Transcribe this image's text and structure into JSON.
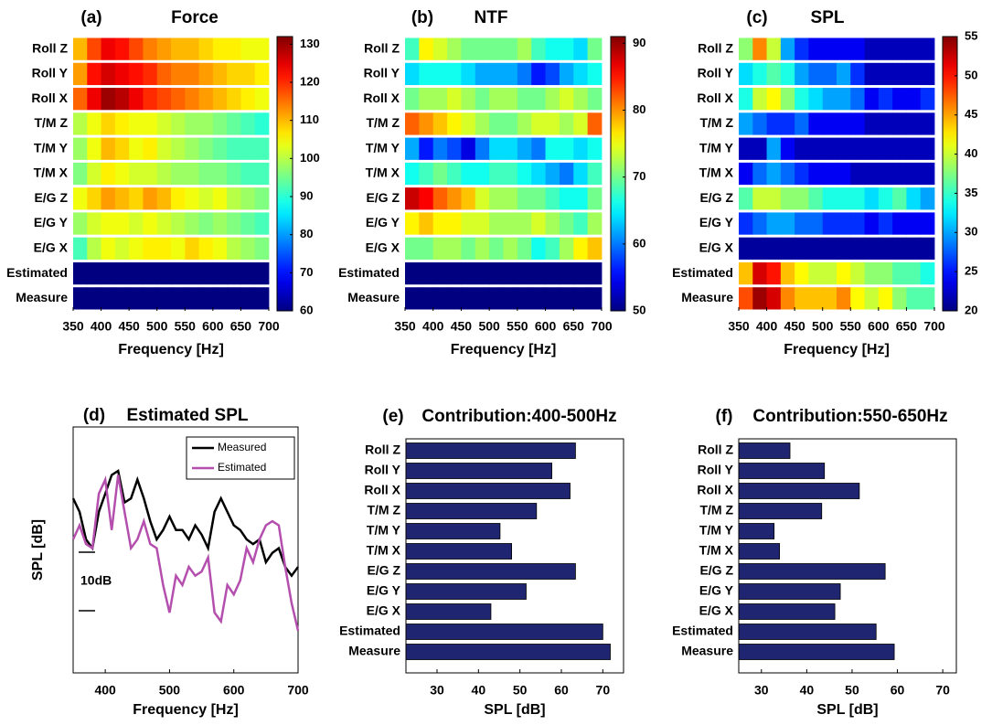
{
  "chart_data": [
    {
      "type": "heatmap",
      "panel": "(a)",
      "title": "Force",
      "rows": [
        "Roll Z",
        "Roll Y",
        "Roll X",
        "T/M Z",
        "T/M Y",
        "T/M X",
        "E/G Z",
        "E/G Y",
        "E/G X",
        "Estimated",
        "Measure"
      ],
      "x_bins": [
        350,
        375,
        400,
        425,
        450,
        475,
        500,
        525,
        550,
        575,
        600,
        625,
        650,
        675,
        700
      ],
      "values": [
        [
          110,
          118,
          124,
          122,
          118,
          114,
          112,
          110,
          110,
          108,
          106,
          106,
          104,
          104
        ],
        [
          112,
          122,
          126,
          124,
          122,
          120,
          116,
          114,
          114,
          112,
          110,
          108,
          108,
          106
        ],
        [
          116,
          124,
          130,
          128,
          124,
          120,
          118,
          116,
          114,
          112,
          110,
          108,
          106,
          104
        ],
        [
          100,
          104,
          108,
          106,
          104,
          104,
          102,
          100,
          98,
          98,
          96,
          94,
          92,
          90
        ],
        [
          98,
          104,
          110,
          108,
          104,
          106,
          102,
          100,
          98,
          96,
          94,
          92,
          92,
          92
        ],
        [
          96,
          102,
          106,
          104,
          102,
          102,
          100,
          98,
          98,
          96,
          96,
          94,
          92,
          92
        ],
        [
          104,
          108,
          112,
          110,
          108,
          112,
          110,
          106,
          104,
          102,
          104,
          100,
          98,
          96
        ],
        [
          98,
          102,
          104,
          104,
          102,
          104,
          102,
          100,
          98,
          96,
          98,
          96,
          94,
          92
        ],
        [
          92,
          100,
          104,
          102,
          104,
          106,
          106,
          104,
          108,
          106,
          104,
          100,
          98,
          96
        ],
        [
          60,
          60,
          60,
          60,
          60,
          60,
          60,
          60,
          60,
          60,
          60,
          60,
          60,
          60
        ],
        [
          60,
          60,
          60,
          60,
          60,
          60,
          60,
          60,
          60,
          60,
          60,
          60,
          60,
          60
        ]
      ],
      "clim": [
        60,
        132
      ],
      "cticks": [
        60,
        70,
        80,
        90,
        100,
        110,
        120,
        130
      ],
      "colormap": "jet",
      "xlim": [
        350,
        700
      ],
      "xticks": [
        350,
        400,
        450,
        500,
        550,
        600,
        650,
        700
      ],
      "xlabel": "Frequency [Hz]"
    },
    {
      "type": "heatmap",
      "panel": "(b)",
      "title": "NTF",
      "rows": [
        "Roll Z",
        "Roll Y",
        "Roll X",
        "T/M Z",
        "T/M Y",
        "T/M X",
        "E/G Z",
        "E/G Y",
        "E/G X",
        "Estimated",
        "Measure"
      ],
      "x_bins": [
        350,
        375,
        400,
        425,
        450,
        475,
        500,
        525,
        550,
        575,
        600,
        625,
        650,
        675,
        700
      ],
      "values": [
        [
          68,
          76,
          74,
          72,
          70,
          70,
          70,
          70,
          72,
          68,
          66,
          66,
          64,
          70
        ],
        [
          64,
          66,
          66,
          66,
          64,
          62,
          62,
          62,
          60,
          56,
          58,
          62,
          64,
          66
        ],
        [
          70,
          72,
          72,
          74,
          72,
          70,
          72,
          72,
          70,
          70,
          72,
          74,
          72,
          70
        ],
        [
          82,
          80,
          78,
          76,
          74,
          72,
          70,
          70,
          72,
          74,
          74,
          72,
          74,
          82
        ],
        [
          62,
          56,
          60,
          58,
          54,
          60,
          64,
          64,
          62,
          60,
          66,
          66,
          64,
          66
        ],
        [
          66,
          68,
          70,
          68,
          66,
          66,
          68,
          68,
          66,
          64,
          62,
          60,
          64,
          68
        ],
        [
          88,
          86,
          82,
          80,
          78,
          74,
          72,
          72,
          70,
          70,
          68,
          66,
          66,
          70
        ],
        [
          76,
          78,
          76,
          76,
          74,
          74,
          72,
          72,
          72,
          74,
          72,
          70,
          68,
          72
        ],
        [
          70,
          70,
          72,
          72,
          70,
          72,
          70,
          72,
          70,
          66,
          68,
          72,
          76,
          78
        ],
        [
          50,
          50,
          50,
          50,
          50,
          50,
          50,
          50,
          50,
          50,
          50,
          50,
          50,
          50
        ],
        [
          50,
          50,
          50,
          50,
          50,
          50,
          50,
          50,
          50,
          50,
          50,
          50,
          50,
          50
        ]
      ],
      "clim": [
        50,
        91
      ],
      "cticks": [
        50,
        60,
        70,
        80,
        90
      ],
      "colormap": "jet",
      "xlim": [
        350,
        700
      ],
      "xticks": [
        350,
        400,
        450,
        500,
        550,
        600,
        650,
        700
      ],
      "xlabel": "Frequency [Hz]"
    },
    {
      "type": "heatmap",
      "panel": "(c)",
      "title": "SPL",
      "rows": [
        "Roll Z",
        "Roll Y",
        "Roll X",
        "T/M Z",
        "T/M Y",
        "T/M X",
        "E/G Z",
        "E/G Y",
        "E/G X",
        "Estimated",
        "Measure"
      ],
      "x_bins": [
        350,
        375,
        400,
        425,
        450,
        475,
        500,
        525,
        550,
        575,
        600,
        625,
        650,
        675,
        700
      ],
      "values": [
        [
          38,
          46,
          40,
          30,
          26,
          24,
          24,
          24,
          24,
          22,
          22,
          22,
          22,
          22
        ],
        [
          32,
          34,
          36,
          34,
          30,
          28,
          28,
          30,
          26,
          22,
          22,
          22,
          22,
          22
        ],
        [
          34,
          40,
          42,
          38,
          34,
          32,
          30,
          30,
          28,
          24,
          26,
          24,
          24,
          26
        ],
        [
          30,
          28,
          26,
          26,
          28,
          24,
          24,
          24,
          24,
          22,
          22,
          22,
          22,
          22
        ],
        [
          22,
          22,
          30,
          24,
          22,
          22,
          22,
          22,
          22,
          22,
          22,
          22,
          22,
          22
        ],
        [
          24,
          28,
          30,
          28,
          26,
          24,
          24,
          24,
          22,
          22,
          22,
          22,
          22,
          22
        ],
        [
          36,
          40,
          40,
          38,
          38,
          36,
          34,
          34,
          34,
          32,
          34,
          36,
          32,
          30
        ],
        [
          26,
          28,
          30,
          30,
          28,
          28,
          26,
          26,
          26,
          24,
          26,
          24,
          24,
          24
        ],
        [
          21,
          21,
          21,
          21,
          21,
          21,
          21,
          21,
          21,
          21,
          21,
          21,
          21,
          21
        ],
        [
          44,
          52,
          50,
          44,
          42,
          40,
          40,
          42,
          40,
          38,
          38,
          36,
          36,
          34
        ],
        [
          48,
          54,
          52,
          46,
          44,
          44,
          44,
          46,
          42,
          40,
          42,
          38,
          36,
          36
        ]
      ],
      "clim": [
        20,
        55
      ],
      "cticks": [
        20,
        25,
        30,
        35,
        40,
        45,
        50,
        55
      ],
      "colormap": "jet",
      "xlim": [
        350,
        700
      ],
      "xticks": [
        350,
        400,
        450,
        500,
        550,
        600,
        650,
        700
      ],
      "xlabel": "Frequency [Hz]"
    },
    {
      "type": "line",
      "panel": "(d)",
      "title": "Estimated SPL",
      "x": [
        350,
        360,
        370,
        380,
        390,
        400,
        410,
        420,
        430,
        440,
        450,
        460,
        470,
        480,
        490,
        500,
        510,
        520,
        530,
        540,
        550,
        560,
        570,
        580,
        590,
        600,
        610,
        620,
        630,
        640,
        650,
        660,
        670,
        680,
        690,
        700
      ],
      "series": [
        {
          "name": "Measured",
          "color": "#000000",
          "values": [
            29.8,
            27.5,
            22.8,
            21.3,
            27.5,
            30.6,
            33.8,
            34.5,
            29.1,
            29.8,
            33,
            29.8,
            25.9,
            22.8,
            24.4,
            26.7,
            24.4,
            24.4,
            22.8,
            25.2,
            23.6,
            21.3,
            27.5,
            29.8,
            27.5,
            25.2,
            24.4,
            22.8,
            22,
            22.8,
            18.9,
            20.5,
            21.3,
            18.1,
            16.6,
            18.1
          ]
        },
        {
          "name": "Estimated",
          "color": "#b44fae",
          "values": [
            22.8,
            25.2,
            22,
            21.3,
            30.6,
            33,
            24.4,
            33.8,
            27.5,
            21.3,
            22.8,
            25.9,
            22,
            21.3,
            15,
            10.3,
            16.6,
            15,
            18.1,
            16.6,
            17.3,
            19.7,
            10.3,
            8.8,
            15,
            13.4,
            15.8,
            21.3,
            18.9,
            22.8,
            25.2,
            25.9,
            25.2,
            18.1,
            11.9,
            7.2
          ]
        }
      ],
      "xlim": [
        350,
        700
      ],
      "xticks": [
        400,
        500,
        600,
        700
      ],
      "ylim": [
        0,
        42
      ],
      "xlabel": "Frequency [Hz]",
      "ylabel": "SPL [dB]",
      "legend": "top-right",
      "scale_bar": {
        "label": "10dB",
        "value": 10
      }
    },
    {
      "type": "bar",
      "orientation": "horizontal",
      "panel": "(e)",
      "title": "Contribution:400-500Hz",
      "categories": [
        "Roll Z",
        "Roll Y",
        "Roll X",
        "T/M Z",
        "T/M Y",
        "T/M X",
        "E/G Z",
        "E/G Y",
        "E/G X",
        "Estimated",
        "Measure"
      ],
      "values": [
        63.4,
        57.7,
        62.1,
        54,
        45.2,
        48,
        63.4,
        51.5,
        43,
        70,
        71.8
      ],
      "color": "#1f2570",
      "xlim": [
        22.5,
        75
      ],
      "xticks": [
        30,
        40,
        50,
        60,
        70
      ],
      "xlabel": "SPL [dB]"
    },
    {
      "type": "bar",
      "orientation": "horizontal",
      "panel": "(f)",
      "title": "Contribution:550-650Hz",
      "categories": [
        "Roll Z",
        "Roll Y",
        "Roll X",
        "T/M Z",
        "T/M Y",
        "T/M X",
        "E/G Z",
        "E/G Y",
        "E/G X",
        "Estimated",
        "Measure"
      ],
      "values": [
        36.3,
        43.9,
        51.6,
        43.3,
        32.8,
        34,
        57.3,
        47.4,
        46.2,
        55.3,
        59.3
      ],
      "color": "#1f2570",
      "xlim": [
        25,
        73
      ],
      "xticks": [
        30,
        40,
        50,
        60,
        70
      ],
      "xlabel": "SPL [dB]"
    }
  ]
}
